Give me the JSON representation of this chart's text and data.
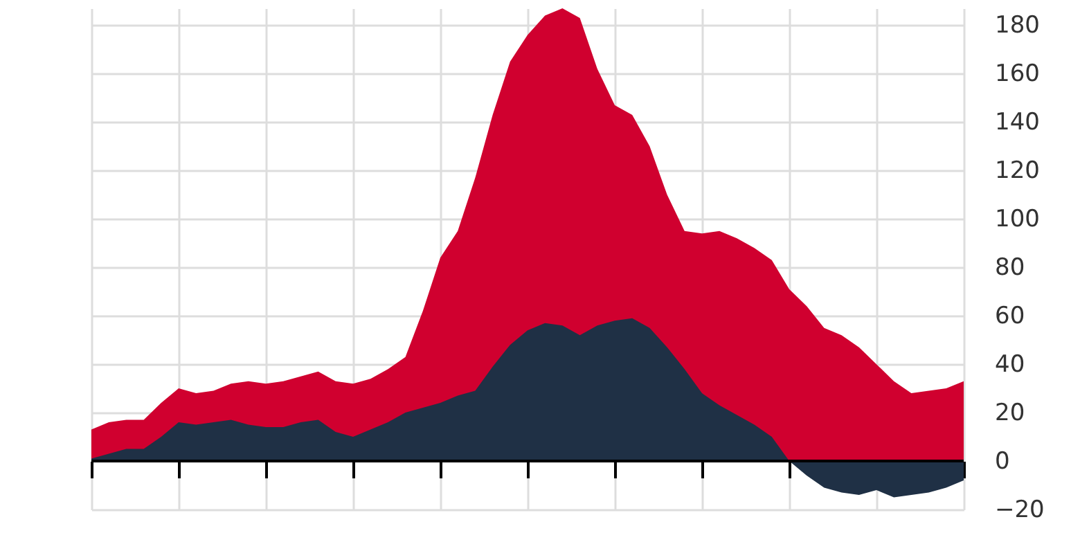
{
  "chart_data": {
    "type": "area",
    "categories": [
      null,
      null,
      null,
      null,
      null,
      null,
      null,
      null,
      null,
      null,
      null,
      null,
      null,
      null,
      null,
      null,
      null,
      null,
      null,
      null,
      null,
      null,
      null,
      null,
      null,
      null,
      null,
      null,
      null,
      null,
      null,
      null,
      null,
      null,
      null,
      null,
      null,
      null,
      null,
      null,
      null,
      null,
      null,
      null,
      null,
      null,
      null,
      null,
      null,
      null,
      null
    ],
    "series": [
      {
        "color": "#d0002f",
        "values": [
          13,
          16,
          17,
          17,
          24,
          30,
          28,
          29,
          32,
          33,
          32,
          33,
          35,
          37,
          33,
          32,
          34,
          38,
          43,
          62,
          84,
          95,
          117,
          143,
          165,
          176,
          184,
          187,
          183,
          162,
          147,
          143,
          130,
          110,
          95,
          94,
          95,
          92,
          88,
          83,
          71,
          64,
          55,
          52,
          47,
          40,
          33,
          28,
          29,
          30,
          33
        ]
      },
      {
        "color": "#1f3045",
        "values": [
          1,
          3,
          5,
          5,
          10,
          16,
          15,
          16,
          17,
          15,
          14,
          14,
          16,
          17,
          12,
          10,
          13,
          16,
          20,
          22,
          24,
          27,
          29,
          39,
          48,
          54,
          57,
          56,
          52,
          56,
          58,
          59,
          55,
          47,
          38,
          28,
          23,
          19,
          15,
          10,
          0,
          -6,
          -11,
          -13,
          -14,
          -12,
          -15,
          -14,
          -13,
          -11,
          -8
        ]
      }
    ],
    "ylim": [
      -20,
      187
    ],
    "yticks": [
      -20,
      0,
      20,
      40,
      60,
      80,
      100,
      120,
      140,
      160,
      180
    ],
    "grid": true,
    "tick_labels": "y",
    "ref_lines": [
      {
        "axis": "y",
        "value": 0,
        "color": "#000000"
      }
    ]
  }
}
